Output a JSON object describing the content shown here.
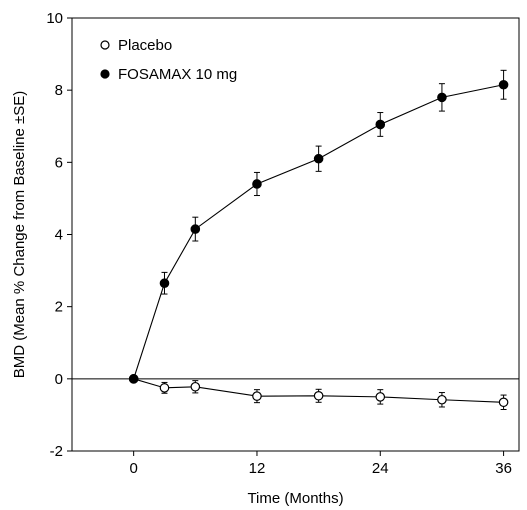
{
  "chart_data": {
    "type": "line",
    "xlabel": "Time (Months)",
    "ylabel": "BMD (Mean % Change from Baseline ±SE)",
    "xlim": [
      -6,
      37.5
    ],
    "ylim": [
      -2,
      10
    ],
    "x_ticks": [
      0,
      12,
      24,
      36
    ],
    "y_ticks": [
      -2,
      0,
      2,
      4,
      6,
      8,
      10
    ],
    "x_tick_labels": [
      "0",
      "12",
      "24",
      "36"
    ],
    "y_tick_labels": [
      "-2",
      "0",
      "2",
      "4",
      "6",
      "8",
      "10"
    ],
    "reference_line_y": 0,
    "legend_position": "top-left",
    "series": [
      {
        "name": "Placebo",
        "marker": "open-circle",
        "color": "#000000",
        "points": [
          {
            "x": 0,
            "y": 0.0,
            "se": 0.0
          },
          {
            "x": 3,
            "y": -0.25,
            "se": 0.15
          },
          {
            "x": 6,
            "y": -0.22,
            "se": 0.17
          },
          {
            "x": 12,
            "y": -0.48,
            "se": 0.18
          },
          {
            "x": 18,
            "y": -0.47,
            "se": 0.18
          },
          {
            "x": 24,
            "y": -0.5,
            "se": 0.2
          },
          {
            "x": 30,
            "y": -0.58,
            "se": 0.2
          },
          {
            "x": 36,
            "y": -0.65,
            "se": 0.2
          }
        ]
      },
      {
        "name": "FOSAMAX 10 mg",
        "marker": "filled-circle",
        "color": "#000000",
        "points": [
          {
            "x": 0,
            "y": 0.0,
            "se": 0.0
          },
          {
            "x": 3,
            "y": 2.65,
            "se": 0.3
          },
          {
            "x": 6,
            "y": 4.15,
            "se": 0.33
          },
          {
            "x": 12,
            "y": 5.4,
            "se": 0.32
          },
          {
            "x": 18,
            "y": 6.1,
            "se": 0.35
          },
          {
            "x": 24,
            "y": 7.05,
            "se": 0.33
          },
          {
            "x": 30,
            "y": 7.8,
            "se": 0.38
          },
          {
            "x": 36,
            "y": 8.15,
            "se": 0.4
          }
        ]
      }
    ]
  }
}
